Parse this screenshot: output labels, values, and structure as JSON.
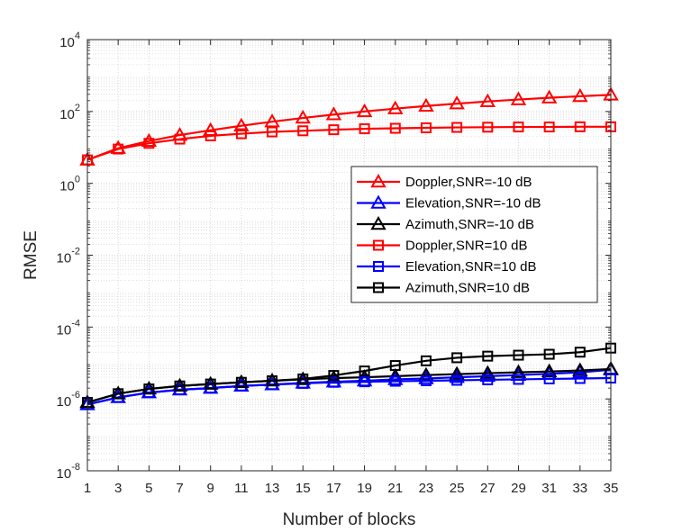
{
  "chart_data": {
    "type": "line",
    "title": "",
    "xlabel": "Number of blocks",
    "ylabel": "RMSE",
    "yscale": "log",
    "xlim": [
      1,
      35
    ],
    "ylim": [
      1e-08,
      10000.0
    ],
    "grid": true,
    "legend_position": "center-right",
    "x": [
      1,
      3,
      5,
      7,
      9,
      11,
      13,
      15,
      17,
      19,
      21,
      23,
      25,
      27,
      29,
      31,
      33,
      35
    ],
    "x_tick_labels": [
      "1",
      "3",
      "5",
      "7",
      "9",
      "11",
      "13",
      "15",
      "17",
      "19",
      "21",
      "23",
      "25",
      "27",
      "29",
      "31",
      "33",
      "35"
    ],
    "y_ticks": [
      {
        "value": 1e-08,
        "base": "10",
        "exp": "-8"
      },
      {
        "value": 1e-06,
        "base": "10",
        "exp": "-6"
      },
      {
        "value": 0.0001,
        "base": "10",
        "exp": "-4"
      },
      {
        "value": 0.01,
        "base": "10",
        "exp": "-2"
      },
      {
        "value": 1,
        "base": "10",
        "exp": "0"
      },
      {
        "value": 100.0,
        "base": "10",
        "exp": "2"
      },
      {
        "value": 10000.0,
        "base": "10",
        "exp": "4"
      }
    ],
    "series": [
      {
        "name": "Doppler,SNR=-10 dB",
        "color": "#ff0000",
        "marker": "triangle",
        "values": [
          4.5,
          9.5,
          15,
          22,
          30,
          40,
          52,
          66,
          82,
          100,
          120,
          142,
          165,
          190,
          215,
          240,
          265,
          290
        ]
      },
      {
        "name": "Elevation,SNR=-10 dB",
        "color": "#0000ff",
        "marker": "triangle",
        "values": [
          7e-07,
          1.1e-06,
          1.5e-06,
          1.8e-06,
          2e-06,
          2.3e-06,
          2.5e-06,
          2.8e-06,
          3e-06,
          3.2e-06,
          3.5e-06,
          3.7e-06,
          4e-06,
          4.3e-06,
          4.6e-06,
          5e-06,
          5.5e-06,
          6.5e-06
        ]
      },
      {
        "name": "Azimuth,SNR=-10 dB",
        "color": "#000000",
        "marker": "triangle",
        "values": [
          8e-07,
          1.4e-06,
          1.9e-06,
          2.3e-06,
          2.6e-06,
          2.9e-06,
          3.2e-06,
          3.5e-06,
          3.8e-06,
          4e-06,
          4.3e-06,
          4.6e-06,
          4.9e-06,
          5.2e-06,
          5.5e-06,
          5.8e-06,
          6.2e-06,
          6.8e-06
        ]
      },
      {
        "name": "Doppler,SNR=10 dB",
        "color": "#ff0000",
        "marker": "square",
        "values": [
          4.5,
          9,
          13,
          17,
          21,
          24,
          27,
          29,
          31,
          33,
          34,
          35,
          36,
          36.5,
          37,
          37,
          37.5,
          37.5
        ]
      },
      {
        "name": "Elevation,SNR=10 dB",
        "color": "#0000ff",
        "marker": "square",
        "values": [
          7e-07,
          1.1e-06,
          1.5e-06,
          1.8e-06,
          2e-06,
          2.3e-06,
          2.5e-06,
          2.7e-06,
          2.9e-06,
          3e-06,
          3.1e-06,
          3.2e-06,
          3.3e-06,
          3.4e-06,
          3.5e-06,
          3.6e-06,
          3.7e-06,
          3.8e-06
        ]
      },
      {
        "name": "Azimuth,SNR=10 dB",
        "color": "#000000",
        "marker": "square",
        "values": [
          8e-07,
          1.4e-06,
          1.9e-06,
          2.3e-06,
          2.6e-06,
          2.9e-06,
          3.2e-06,
          3.6e-06,
          4.5e-06,
          6e-06,
          8.5e-06,
          1.15e-05,
          1.4e-05,
          1.55e-05,
          1.65e-05,
          1.75e-05,
          2e-05,
          2.6e-05
        ]
      }
    ]
  }
}
